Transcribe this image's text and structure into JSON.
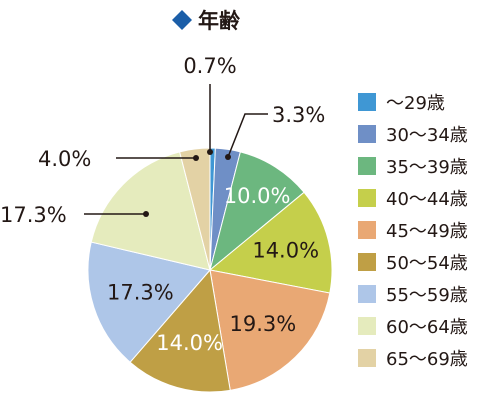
{
  "chart_data": {
    "type": "pie",
    "title": "年齢",
    "title_marker_color": "#1b5ea8",
    "legend_position": "right",
    "slices": [
      {
        "label": "～29歳",
        "value": 0.7,
        "value_label": "0.7%",
        "color": "#3f97d4"
      },
      {
        "label": "30～34歳",
        "value": 3.3,
        "value_label": "3.3%",
        "color": "#6f8fc6"
      },
      {
        "label": "35～39歳",
        "value": 10.0,
        "value_label": "10.0%",
        "color": "#6cb77f"
      },
      {
        "label": "40～44歳",
        "value": 14.0,
        "value_label": "14.0%",
        "color": "#c5cf4b"
      },
      {
        "label": "45～49歳",
        "value": 19.3,
        "value_label": "19.3%",
        "color": "#e9a874"
      },
      {
        "label": "50～54歳",
        "value": 14.0,
        "value_label": "14.0%",
        "color": "#bf9f45"
      },
      {
        "label": "55～59歳",
        "value": 17.3,
        "value_label": "17.3%",
        "color": "#aec6e8"
      },
      {
        "label": "60～64歳",
        "value": 17.3,
        "value_label": "17.3%",
        "color": "#e5ebbd"
      },
      {
        "label": "65～69歳",
        "value": 4.0,
        "value_label": "4.0%",
        "color": "#e3d2a5"
      }
    ]
  }
}
